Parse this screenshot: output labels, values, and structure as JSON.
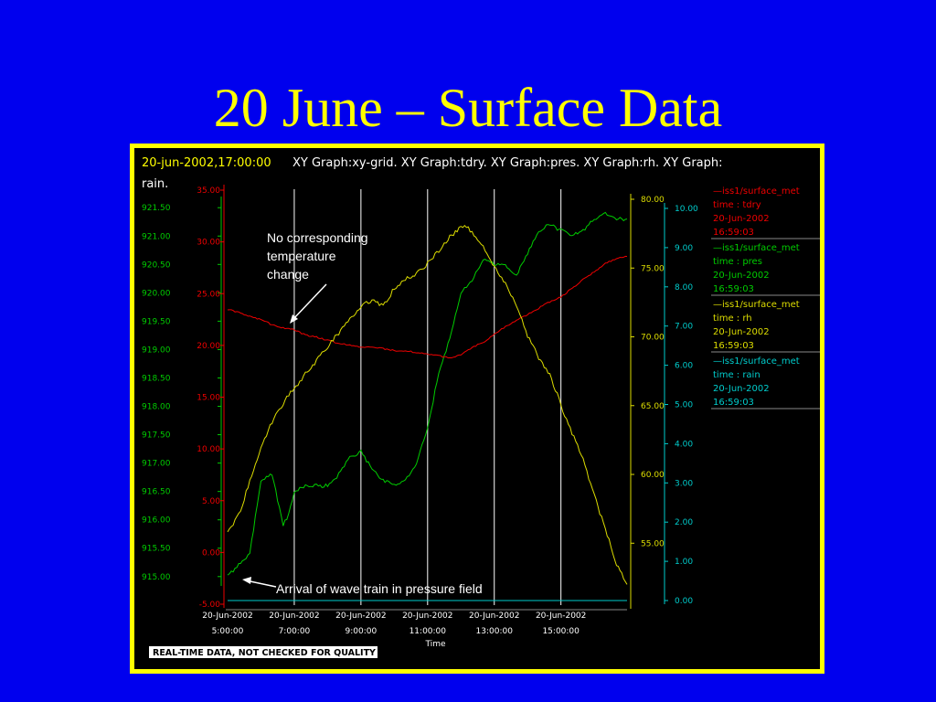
{
  "slide": {
    "title": "20 June – Surface Data"
  },
  "chart_data": {
    "type": "line",
    "header": {
      "datetime": "20-jun-2002,17:00:00",
      "graphs": "XY Graph:xy-grid.  XY Graph:tdry.  XY Graph:pres.  XY Graph:rh.  XY Graph:",
      "graphs_cont": "rain."
    },
    "xlabel": "Time",
    "x_ticks": [
      {
        "date": "20-Jun-2002",
        "time": "5:00:00"
      },
      {
        "date": "20-Jun-2002",
        "time": "7:00:00"
      },
      {
        "date": "20-Jun-2002",
        "time": "9:00:00"
      },
      {
        "date": "20-Jun-2002",
        "time": "11:00:00"
      },
      {
        "date": "20-Jun-2002",
        "time": "13:00:00"
      },
      {
        "date": "20-Jun-2002",
        "time": "15:00:00"
      }
    ],
    "xlim": [
      "05:00",
      "16:59"
    ],
    "grid": "vertical lines at tick hours",
    "axes": {
      "pres": {
        "color": "#00cc00",
        "ticks": [
          "921.50",
          "921.00",
          "920.50",
          "920.00",
          "919.50",
          "919.00",
          "918.50",
          "918.00",
          "917.50",
          "917.00",
          "916.50",
          "916.00",
          "915.50",
          "915.00"
        ],
        "range": [
          914.9,
          921.6
        ]
      },
      "tdry": {
        "color": "#ee0000",
        "ticks": [
          "35.00",
          "30.00",
          "25.00",
          "20.00",
          "15.00",
          "10.00",
          "5.00",
          "0.00",
          "-5.00"
        ],
        "range": [
          -5,
          35
        ]
      },
      "rh": {
        "color": "#dddd00",
        "ticks": [
          "80.00",
          "75.00",
          "70.00",
          "65.00",
          "60.00",
          "55.00"
        ],
        "range": [
          50.5,
          80
        ]
      },
      "rain": {
        "color": "#00cccc",
        "ticks": [
          "10.00",
          "9.00",
          "8.00",
          "7.00",
          "6.00",
          "5.00",
          "4.00",
          "3.00",
          "2.00",
          "1.00",
          "0.00"
        ],
        "range": [
          0,
          10
        ]
      }
    },
    "series": [
      {
        "name": "pres",
        "color": "#00cc00",
        "x": [
          "05:00",
          "05:20",
          "05:40",
          "06:00",
          "06:20",
          "06:40",
          "06:50",
          "07:00",
          "07:20",
          "07:40",
          "08:00",
          "08:20",
          "08:40",
          "09:00",
          "09:20",
          "09:40",
          "10:00",
          "10:20",
          "10:40",
          "11:00",
          "11:20",
          "11:40",
          "12:00",
          "12:20",
          "12:40",
          "13:00",
          "13:20",
          "13:40",
          "14:00",
          "14:20",
          "14:40",
          "15:00",
          "15:20",
          "15:40",
          "16:00",
          "16:20",
          "16:40",
          "16:59"
        ],
        "values": [
          915.0,
          915.2,
          915.4,
          916.7,
          916.8,
          915.9,
          916.1,
          916.5,
          916.6,
          916.6,
          916.6,
          916.8,
          917.1,
          917.2,
          916.9,
          916.7,
          916.6,
          916.7,
          917.0,
          917.6,
          918.6,
          919.2,
          920.0,
          920.2,
          920.6,
          920.5,
          920.5,
          920.3,
          920.7,
          921.1,
          921.2,
          921.1,
          921.0,
          921.1,
          921.3,
          921.4,
          921.3,
          921.3
        ]
      },
      {
        "name": "tdry",
        "color": "#ee0000",
        "x": [
          "05:00",
          "05:20",
          "05:40",
          "06:00",
          "06:20",
          "06:40",
          "07:00",
          "07:20",
          "07:40",
          "08:00",
          "08:20",
          "08:40",
          "09:00",
          "09:20",
          "09:40",
          "10:00",
          "10:20",
          "10:40",
          "11:00",
          "11:20",
          "11:40",
          "12:00",
          "12:20",
          "12:40",
          "13:00",
          "13:20",
          "13:40",
          "14:00",
          "14:20",
          "14:40",
          "15:00",
          "15:20",
          "15:40",
          "16:00",
          "16:20",
          "16:40",
          "16:59"
        ],
        "values": [
          23.5,
          23.2,
          22.8,
          22.5,
          22.0,
          21.7,
          21.5,
          21.0,
          20.8,
          20.5,
          20.2,
          20.0,
          19.8,
          19.8,
          19.7,
          19.5,
          19.5,
          19.3,
          19.2,
          19.0,
          18.8,
          19.1,
          19.8,
          20.3,
          21.1,
          21.8,
          22.4,
          23.0,
          23.6,
          24.2,
          24.7,
          25.5,
          26.4,
          27.1,
          27.9,
          28.4,
          28.6
        ]
      },
      {
        "name": "rh",
        "color": "#dddd00",
        "x": [
          "05:00",
          "05:20",
          "05:40",
          "06:00",
          "06:20",
          "06:40",
          "07:00",
          "07:20",
          "07:40",
          "08:00",
          "08:20",
          "08:40",
          "09:00",
          "09:20",
          "09:40",
          "10:00",
          "10:20",
          "10:40",
          "11:00",
          "11:20",
          "11:40",
          "12:00",
          "12:10",
          "12:20",
          "12:40",
          "13:00",
          "13:20",
          "13:40",
          "14:00",
          "14:20",
          "14:40",
          "15:00",
          "15:20",
          "15:40",
          "16:00",
          "16:20",
          "16:40",
          "16:59"
        ],
        "values": [
          55.7,
          57.0,
          59.5,
          62.0,
          63.8,
          65.2,
          66.3,
          67.3,
          68.3,
          69.3,
          70.3,
          71.3,
          72.3,
          72.6,
          72.3,
          73.5,
          74.2,
          74.6,
          75.3,
          76.3,
          77.3,
          78.0,
          78.0,
          77.6,
          76.5,
          75.0,
          74.0,
          72.3,
          70.0,
          68.5,
          67.3,
          65.0,
          63.0,
          61.0,
          58.5,
          56.0,
          53.5,
          52.0
        ]
      },
      {
        "name": "rain",
        "color": "#00cccc",
        "x": [
          "05:00",
          "16:59"
        ],
        "values": [
          0.0,
          0.0
        ]
      }
    ],
    "legend": {
      "placement": "right",
      "entries": [
        {
          "source": "iss1/surface_met",
          "field": "time : tdry",
          "date": "20-Jun-2002",
          "time": "16:59:03",
          "color": "#ee0000"
        },
        {
          "source": "iss1/surface_met",
          "field": "time : pres",
          "date": "20-Jun-2002",
          "time": "16:59:03",
          "color": "#00cc00"
        },
        {
          "source": "iss1/surface_met",
          "field": "time : rh",
          "date": "20-Jun-2002",
          "time": "16:59:03",
          "color": "#dddd00"
        },
        {
          "source": "iss1/surface_met",
          "field": "time : rain",
          "date": "20-Jun-2002",
          "time": "16:59:03",
          "color": "#00cccc"
        }
      ]
    },
    "annotations": [
      {
        "lines": [
          "No corresponding",
          "temperature",
          "change"
        ],
        "target": "tdry",
        "at": "07:00"
      },
      {
        "lines": [
          "Arrival of wave train in pressure field"
        ],
        "target": "pres",
        "at": "05:10"
      }
    ],
    "footer": "REAL-TIME DATA, NOT CHECKED FOR QUALITY"
  }
}
